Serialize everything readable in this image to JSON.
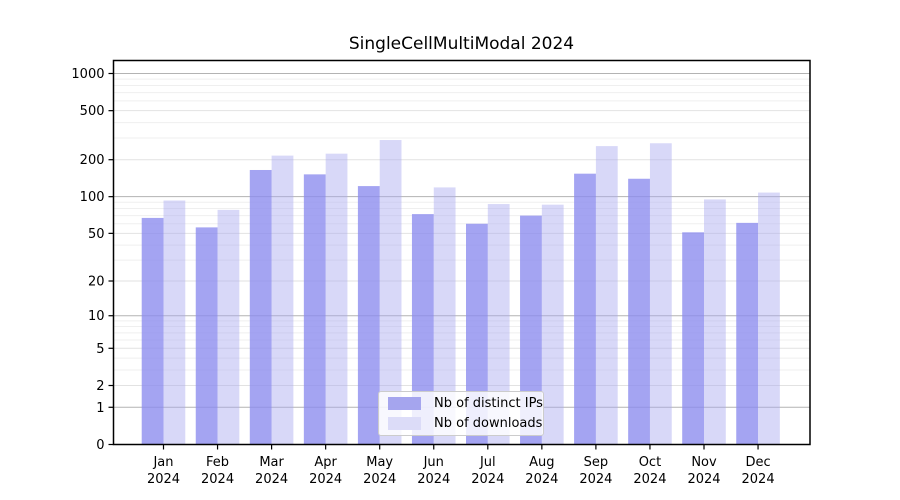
{
  "chart_data": {
    "type": "bar",
    "title": "SingleCellMultiModal 2024",
    "categories": [
      "Jan",
      "Feb",
      "Mar",
      "Apr",
      "May",
      "Jun",
      "Jul",
      "Aug",
      "Sep",
      "Oct",
      "Nov",
      "Dec"
    ],
    "year_label": "2024",
    "series": [
      {
        "name": "Nb of distinct IPs",
        "color": "rgba(138,138,238,0.78)",
        "legend_color": "#a5a5ee",
        "values": [
          67,
          56,
          165,
          152,
          122,
          72,
          60,
          70,
          154,
          140,
          51,
          61
        ]
      },
      {
        "name": "Nb of downloads",
        "color": "rgba(168,168,240,0.45)",
        "legend_color": "#dcdcf8",
        "values": [
          93,
          78,
          216,
          224,
          289,
          119,
          87,
          86,
          258,
          272,
          95,
          108
        ]
      }
    ],
    "xlabel": "",
    "ylabel": "",
    "yscale": "log1p",
    "ylim": [
      0,
      1290
    ],
    "yticks": [
      1000,
      500,
      200,
      100,
      50,
      20,
      10,
      5,
      2,
      1,
      0
    ],
    "grid": {
      "on": true,
      "decade": [
        1000,
        100,
        10,
        1
      ],
      "major": [
        500,
        200,
        50,
        20,
        5,
        2
      ],
      "minor": [
        900,
        800,
        700,
        600,
        400,
        300,
        90,
        80,
        70,
        60,
        40,
        30,
        9,
        8,
        7,
        6,
        4,
        3
      ]
    },
    "legend_position": "lower center",
    "colors": {
      "decade_grid": "#b3b3b3",
      "major_grid": "#e2e2e2",
      "minor_grid": "#efefef",
      "spine": "#000000",
      "text": "#000000"
    }
  }
}
